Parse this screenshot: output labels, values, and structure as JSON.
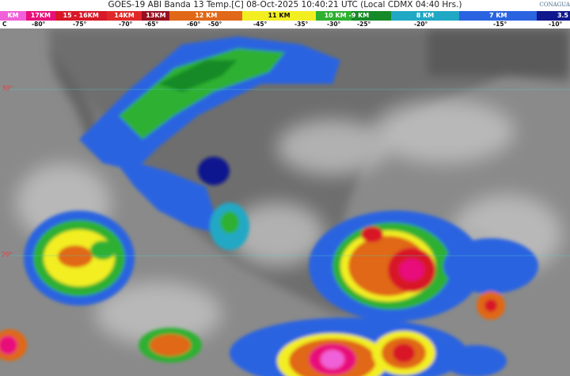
{
  "header": {
    "title": "GOES-19 ABI Banda 13 Temp.[C] 08-Oct-2025 10:40:21 UTC (Local CDMX  04:40 Hrs.)",
    "logo_text": "CONAGUA"
  },
  "legend": [
    {
      "label": "KM",
      "color": "#f060d8"
    },
    {
      "label": "17KM",
      "color": "#e8107a"
    },
    {
      "label": "15 - 16KM",
      "color": "#d81828"
    },
    {
      "label": "14KM",
      "color": "#e02828"
    },
    {
      "label": "13KM",
      "color": "#961020"
    },
    {
      "label": "12 KM",
      "color": "#e06818"
    },
    {
      "label": "11 KM",
      "color": "#f2ee22"
    },
    {
      "label": "10 KM - ",
      "color": "#2eb030"
    },
    {
      "label": "9 KM",
      "color": "#168a28"
    },
    {
      "label": "8 KM",
      "color": "#20a8c4"
    },
    {
      "label": "7 KM",
      "color": "#2a64e0"
    },
    {
      "label": "3.5",
      "color": "#10188e"
    }
  ],
  "temperatures": [
    "C",
    "-80°",
    "-75°",
    "-70°",
    "-65°",
    "-60°",
    "-50°",
    "-45°",
    "-35°",
    "-30°",
    "-25°",
    "-20°",
    "-15°",
    "-10°"
  ],
  "map": {
    "latitude_labels": [
      "30°",
      "20°"
    ],
    "grid_color": "#4fd0d0"
  }
}
